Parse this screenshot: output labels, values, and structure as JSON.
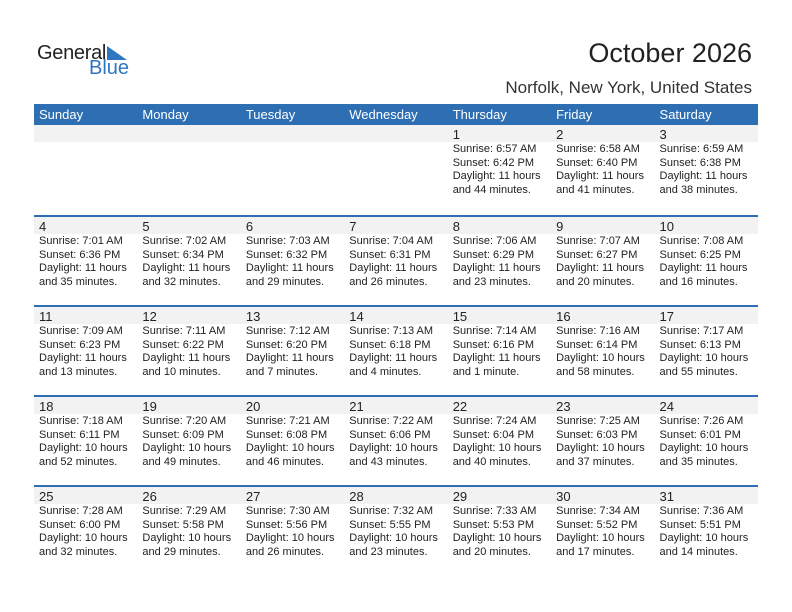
{
  "logo": {
    "text_general": "General",
    "text_blue": "Blue",
    "color": "#2e77c0"
  },
  "title": "October 2026",
  "location": "Norfolk, New York, United States",
  "header_color": "#2e6fb3",
  "weekdays": [
    "Sunday",
    "Monday",
    "Tuesday",
    "Wednesday",
    "Thursday",
    "Friday",
    "Saturday"
  ],
  "weeks": [
    [
      null,
      null,
      null,
      null,
      {
        "day": "1",
        "sunrise": "Sunrise: 6:57 AM",
        "sunset": "Sunset: 6:42 PM",
        "daylight": "Daylight: 11 hours",
        "minutes": "and 44 minutes."
      },
      {
        "day": "2",
        "sunrise": "Sunrise: 6:58 AM",
        "sunset": "Sunset: 6:40 PM",
        "daylight": "Daylight: 11 hours",
        "minutes": "and 41 minutes."
      },
      {
        "day": "3",
        "sunrise": "Sunrise: 6:59 AM",
        "sunset": "Sunset: 6:38 PM",
        "daylight": "Daylight: 11 hours",
        "minutes": "and 38 minutes."
      }
    ],
    [
      {
        "day": "4",
        "sunrise": "Sunrise: 7:01 AM",
        "sunset": "Sunset: 6:36 PM",
        "daylight": "Daylight: 11 hours",
        "minutes": "and 35 minutes."
      },
      {
        "day": "5",
        "sunrise": "Sunrise: 7:02 AM",
        "sunset": "Sunset: 6:34 PM",
        "daylight": "Daylight: 11 hours",
        "minutes": "and 32 minutes."
      },
      {
        "day": "6",
        "sunrise": "Sunrise: 7:03 AM",
        "sunset": "Sunset: 6:32 PM",
        "daylight": "Daylight: 11 hours",
        "minutes": "and 29 minutes."
      },
      {
        "day": "7",
        "sunrise": "Sunrise: 7:04 AM",
        "sunset": "Sunset: 6:31 PM",
        "daylight": "Daylight: 11 hours",
        "minutes": "and 26 minutes."
      },
      {
        "day": "8",
        "sunrise": "Sunrise: 7:06 AM",
        "sunset": "Sunset: 6:29 PM",
        "daylight": "Daylight: 11 hours",
        "minutes": "and 23 minutes."
      },
      {
        "day": "9",
        "sunrise": "Sunrise: 7:07 AM",
        "sunset": "Sunset: 6:27 PM",
        "daylight": "Daylight: 11 hours",
        "minutes": "and 20 minutes."
      },
      {
        "day": "10",
        "sunrise": "Sunrise: 7:08 AM",
        "sunset": "Sunset: 6:25 PM",
        "daylight": "Daylight: 11 hours",
        "minutes": "and 16 minutes."
      }
    ],
    [
      {
        "day": "11",
        "sunrise": "Sunrise: 7:09 AM",
        "sunset": "Sunset: 6:23 PM",
        "daylight": "Daylight: 11 hours",
        "minutes": "and 13 minutes."
      },
      {
        "day": "12",
        "sunrise": "Sunrise: 7:11 AM",
        "sunset": "Sunset: 6:22 PM",
        "daylight": "Daylight: 11 hours",
        "minutes": "and 10 minutes."
      },
      {
        "day": "13",
        "sunrise": "Sunrise: 7:12 AM",
        "sunset": "Sunset: 6:20 PM",
        "daylight": "Daylight: 11 hours",
        "minutes": "and 7 minutes."
      },
      {
        "day": "14",
        "sunrise": "Sunrise: 7:13 AM",
        "sunset": "Sunset: 6:18 PM",
        "daylight": "Daylight: 11 hours",
        "minutes": "and 4 minutes."
      },
      {
        "day": "15",
        "sunrise": "Sunrise: 7:14 AM",
        "sunset": "Sunset: 6:16 PM",
        "daylight": "Daylight: 11 hours",
        "minutes": "and 1 minute."
      },
      {
        "day": "16",
        "sunrise": "Sunrise: 7:16 AM",
        "sunset": "Sunset: 6:14 PM",
        "daylight": "Daylight: 10 hours",
        "minutes": "and 58 minutes."
      },
      {
        "day": "17",
        "sunrise": "Sunrise: 7:17 AM",
        "sunset": "Sunset: 6:13 PM",
        "daylight": "Daylight: 10 hours",
        "minutes": "and 55 minutes."
      }
    ],
    [
      {
        "day": "18",
        "sunrise": "Sunrise: 7:18 AM",
        "sunset": "Sunset: 6:11 PM",
        "daylight": "Daylight: 10 hours",
        "minutes": "and 52 minutes."
      },
      {
        "day": "19",
        "sunrise": "Sunrise: 7:20 AM",
        "sunset": "Sunset: 6:09 PM",
        "daylight": "Daylight: 10 hours",
        "minutes": "and 49 minutes."
      },
      {
        "day": "20",
        "sunrise": "Sunrise: 7:21 AM",
        "sunset": "Sunset: 6:08 PM",
        "daylight": "Daylight: 10 hours",
        "minutes": "and 46 minutes."
      },
      {
        "day": "21",
        "sunrise": "Sunrise: 7:22 AM",
        "sunset": "Sunset: 6:06 PM",
        "daylight": "Daylight: 10 hours",
        "minutes": "and 43 minutes."
      },
      {
        "day": "22",
        "sunrise": "Sunrise: 7:24 AM",
        "sunset": "Sunset: 6:04 PM",
        "daylight": "Daylight: 10 hours",
        "minutes": "and 40 minutes."
      },
      {
        "day": "23",
        "sunrise": "Sunrise: 7:25 AM",
        "sunset": "Sunset: 6:03 PM",
        "daylight": "Daylight: 10 hours",
        "minutes": "and 37 minutes."
      },
      {
        "day": "24",
        "sunrise": "Sunrise: 7:26 AM",
        "sunset": "Sunset: 6:01 PM",
        "daylight": "Daylight: 10 hours",
        "minutes": "and 35 minutes."
      }
    ],
    [
      {
        "day": "25",
        "sunrise": "Sunrise: 7:28 AM",
        "sunset": "Sunset: 6:00 PM",
        "daylight": "Daylight: 10 hours",
        "minutes": "and 32 minutes."
      },
      {
        "day": "26",
        "sunrise": "Sunrise: 7:29 AM",
        "sunset": "Sunset: 5:58 PM",
        "daylight": "Daylight: 10 hours",
        "minutes": "and 29 minutes."
      },
      {
        "day": "27",
        "sunrise": "Sunrise: 7:30 AM",
        "sunset": "Sunset: 5:56 PM",
        "daylight": "Daylight: 10 hours",
        "minutes": "and 26 minutes."
      },
      {
        "day": "28",
        "sunrise": "Sunrise: 7:32 AM",
        "sunset": "Sunset: 5:55 PM",
        "daylight": "Daylight: 10 hours",
        "minutes": "and 23 minutes."
      },
      {
        "day": "29",
        "sunrise": "Sunrise: 7:33 AM",
        "sunset": "Sunset: 5:53 PM",
        "daylight": "Daylight: 10 hours",
        "minutes": "and 20 minutes."
      },
      {
        "day": "30",
        "sunrise": "Sunrise: 7:34 AM",
        "sunset": "Sunset: 5:52 PM",
        "daylight": "Daylight: 10 hours",
        "minutes": "and 17 minutes."
      },
      {
        "day": "31",
        "sunrise": "Sunrise: 7:36 AM",
        "sunset": "Sunset: 5:51 PM",
        "daylight": "Daylight: 10 hours",
        "minutes": "and 14 minutes."
      }
    ]
  ]
}
